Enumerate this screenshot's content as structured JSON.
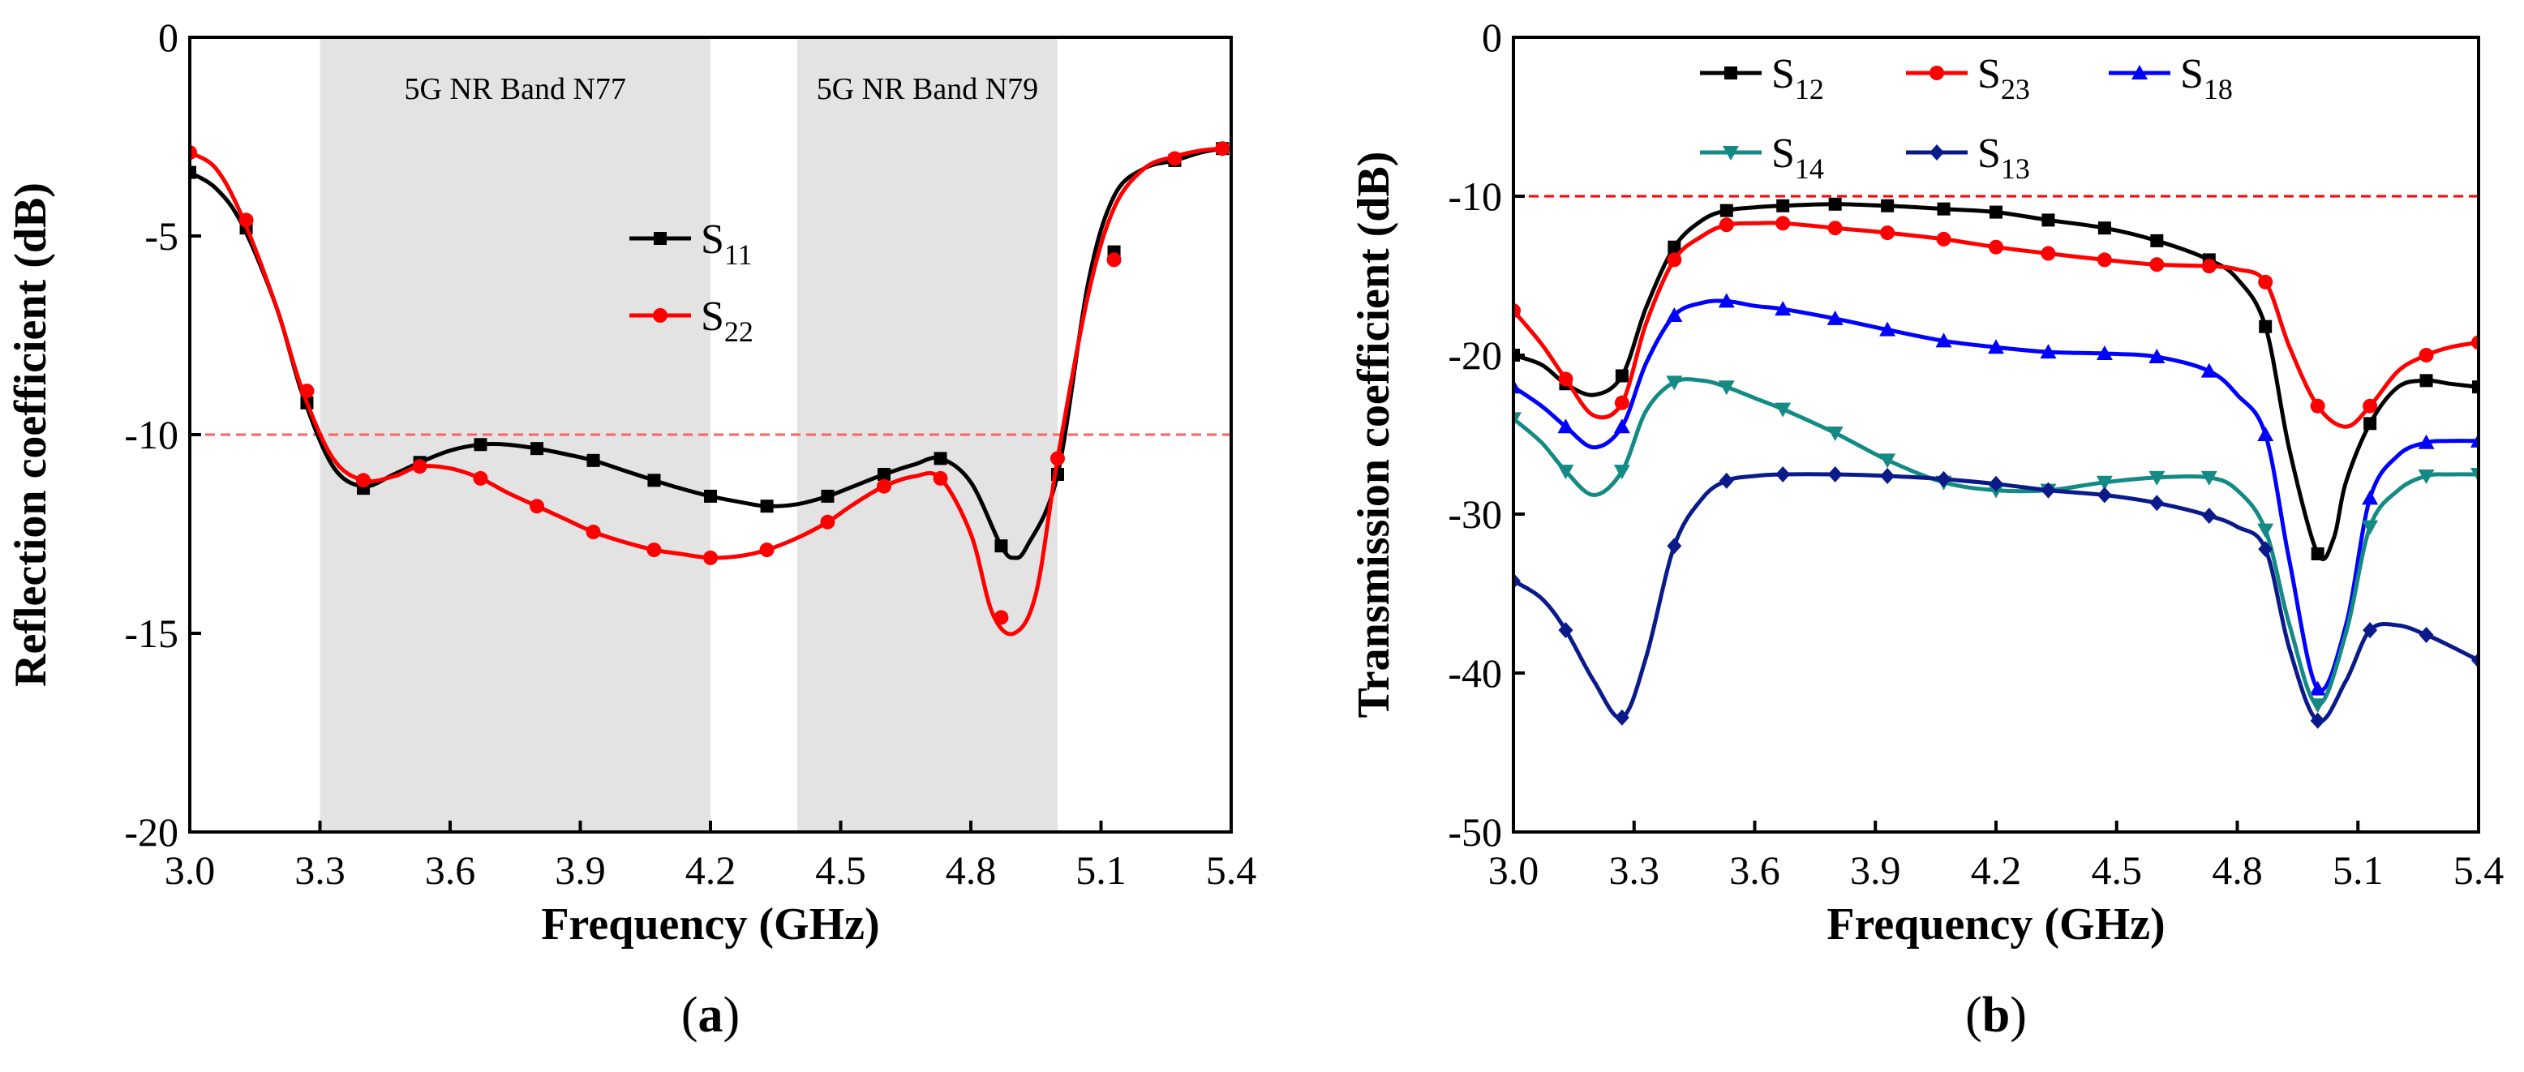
{
  "chart_data": [
    {
      "type": "line",
      "panel_label": "(a)",
      "panel_label_parts": [
        "(",
        "a",
        ")"
      ],
      "xlabel": "Frequency (GHz)",
      "ylabel": "Reflection coefficient (dB)",
      "xlim": [
        3.0,
        5.4
      ],
      "ylim": [
        -20,
        0
      ],
      "xticks": [
        3.0,
        3.3,
        3.6,
        3.9,
        4.2,
        4.5,
        4.8,
        5.1,
        5.4
      ],
      "xtick_labels": [
        "3.0",
        "3.3",
        "3.6",
        "3.9",
        "4.2",
        "4.5",
        "4.8",
        "5.1",
        "5.4"
      ],
      "yticks": [
        0,
        -5,
        -10,
        -15,
        -20
      ],
      "ytick_labels": [
        "0",
        "-5",
        "-10",
        "-15",
        "-20"
      ],
      "threshold": -10,
      "threshold_color": "#ff6060",
      "bands": [
        {
          "label": "5G NR Band N77",
          "x0": 3.3,
          "x1": 4.2,
          "color": "#e3e3e3"
        },
        {
          "label": "5G NR Band N79",
          "x0": 4.4,
          "x1": 5.0,
          "color": "#e3e3e3"
        }
      ],
      "legend_position": "center",
      "series": [
        {
          "name": "S11",
          "name_main": "S",
          "name_sub": "11",
          "color": "#000000",
          "marker": "square",
          "x": [
            3.0,
            3.06,
            3.12,
            3.2,
            3.26,
            3.33,
            3.4,
            3.47,
            3.53,
            3.6,
            3.67,
            3.73,
            3.8,
            3.87,
            3.93,
            4.0,
            4.07,
            4.13,
            4.2,
            4.27,
            4.33,
            4.4,
            4.47,
            4.53,
            4.6,
            4.67,
            4.73,
            4.8,
            4.87,
            4.9,
            4.93,
            5.0,
            5.07,
            5.13,
            5.2,
            5.27,
            5.33,
            5.38
          ],
          "y": [
            -3.4,
            -3.8,
            -4.7,
            -6.8,
            -9.0,
            -10.8,
            -11.3,
            -11.0,
            -10.7,
            -10.4,
            -10.25,
            -10.25,
            -10.35,
            -10.5,
            -10.65,
            -10.9,
            -11.15,
            -11.35,
            -11.55,
            -11.7,
            -11.8,
            -11.75,
            -11.55,
            -11.3,
            -11.0,
            -10.75,
            -10.6,
            -11.2,
            -12.8,
            -13.1,
            -12.8,
            -11.0,
            -6.2,
            -4.0,
            -3.3,
            -3.1,
            -2.9,
            -2.8
          ],
          "marker_x": [
            3.0,
            3.13,
            3.27,
            3.4,
            3.53,
            3.67,
            3.8,
            3.93,
            4.07,
            4.2,
            4.33,
            4.47,
            4.6,
            4.73,
            4.87,
            5.0,
            5.13,
            5.27,
            5.38
          ],
          "marker_y": [
            -3.4,
            -4.8,
            -9.2,
            -11.35,
            -10.7,
            -10.25,
            -10.35,
            -10.65,
            -11.15,
            -11.55,
            -11.8,
            -11.55,
            -11.0,
            -10.6,
            -12.8,
            -11.0,
            -5.4,
            -3.1,
            -2.8
          ]
        },
        {
          "name": "S22",
          "name_main": "S",
          "name_sub": "22",
          "color": "#ff0000",
          "marker": "circle",
          "x": [
            3.0,
            3.06,
            3.12,
            3.2,
            3.26,
            3.33,
            3.4,
            3.47,
            3.53,
            3.6,
            3.67,
            3.73,
            3.8,
            3.87,
            3.93,
            4.0,
            4.07,
            4.13,
            4.2,
            4.27,
            4.33,
            4.4,
            4.47,
            4.53,
            4.6,
            4.67,
            4.73,
            4.8,
            4.85,
            4.9,
            4.95,
            5.0,
            5.07,
            5.13,
            5.2,
            5.27,
            5.33,
            5.38
          ],
          "y": [
            -2.9,
            -3.3,
            -4.5,
            -6.8,
            -8.9,
            -10.6,
            -11.15,
            -11.05,
            -10.8,
            -10.85,
            -11.1,
            -11.45,
            -11.8,
            -12.15,
            -12.45,
            -12.7,
            -12.9,
            -13.0,
            -13.1,
            -13.05,
            -12.9,
            -12.6,
            -12.2,
            -11.75,
            -11.3,
            -11.05,
            -11.1,
            -12.5,
            -14.5,
            -15.0,
            -14.0,
            -10.6,
            -6.5,
            -4.3,
            -3.3,
            -3.0,
            -2.85,
            -2.8
          ],
          "marker_x": [
            3.0,
            3.13,
            3.27,
            3.4,
            3.53,
            3.67,
            3.8,
            3.93,
            4.07,
            4.2,
            4.33,
            4.47,
            4.6,
            4.73,
            4.87,
            5.0,
            5.13,
            5.27,
            5.38
          ],
          "marker_y": [
            -2.9,
            -4.6,
            -8.9,
            -11.15,
            -10.8,
            -11.1,
            -11.8,
            -12.45,
            -12.9,
            -13.1,
            -12.9,
            -12.2,
            -11.3,
            -11.1,
            -14.6,
            -10.6,
            -5.6,
            -3.05,
            -2.8
          ]
        }
      ]
    },
    {
      "type": "line",
      "panel_label": "(b)",
      "panel_label_parts": [
        "(",
        "b",
        ")"
      ],
      "xlabel": "Frequency (GHz)",
      "ylabel": "Transmission coefficient (dB)",
      "xlim": [
        3.0,
        5.4
      ],
      "ylim": [
        -50,
        0
      ],
      "xticks": [
        3.0,
        3.3,
        3.6,
        3.9,
        4.2,
        4.5,
        4.8,
        5.1,
        5.4
      ],
      "xtick_labels": [
        "3.0",
        "3.3",
        "3.6",
        "3.9",
        "4.2",
        "4.5",
        "4.8",
        "5.1",
        "5.4"
      ],
      "yticks": [
        0,
        -10,
        -20,
        -30,
        -40,
        -50
      ],
      "ytick_labels": [
        "0",
        "-10",
        "-20",
        "-30",
        "-40",
        "-50"
      ],
      "threshold": -10,
      "threshold_color": "#ff0000",
      "legend_position": "top",
      "series": [
        {
          "name": "S12",
          "name_main": "S",
          "name_sub": "12",
          "color": "#000000",
          "marker": "square",
          "x": [
            3.0,
            3.07,
            3.13,
            3.2,
            3.27,
            3.33,
            3.4,
            3.47,
            3.53,
            3.6,
            3.67,
            3.8,
            3.93,
            4.07,
            4.2,
            4.33,
            4.47,
            4.6,
            4.73,
            4.8,
            4.87,
            4.93,
            5.0,
            5.04,
            5.07,
            5.13,
            5.2,
            5.27,
            5.33,
            5.4
          ],
          "y": [
            -20.0,
            -20.6,
            -21.8,
            -22.5,
            -21.3,
            -17.0,
            -13.2,
            -11.5,
            -10.9,
            -10.7,
            -10.6,
            -10.5,
            -10.6,
            -10.8,
            -11.0,
            -11.5,
            -12.0,
            -12.8,
            -14.0,
            -15.2,
            -18.2,
            -26.0,
            -32.5,
            -31.5,
            -28.0,
            -24.3,
            -22.0,
            -21.6,
            -21.8,
            -22.0
          ],
          "marker_x": [
            3.0,
            3.13,
            3.27,
            3.4,
            3.53,
            3.67,
            3.8,
            3.93,
            4.07,
            4.2,
            4.33,
            4.47,
            4.6,
            4.73,
            4.87,
            5.0,
            5.13,
            5.27,
            5.4
          ],
          "marker_y": [
            -20.0,
            -21.8,
            -21.3,
            -13.2,
            -10.9,
            -10.6,
            -10.5,
            -10.6,
            -10.8,
            -11.0,
            -11.5,
            -12.0,
            -12.8,
            -14.0,
            -18.2,
            -32.5,
            -24.3,
            -21.6,
            -22.0
          ]
        },
        {
          "name": "S23",
          "name_main": "S",
          "name_sub": "23",
          "color": "#ff0000",
          "marker": "circle",
          "x": [
            3.0,
            3.07,
            3.13,
            3.2,
            3.27,
            3.33,
            3.4,
            3.47,
            3.53,
            3.6,
            3.67,
            3.8,
            3.93,
            4.07,
            4.2,
            4.33,
            4.47,
            4.6,
            4.73,
            4.8,
            4.87,
            4.93,
            5.0,
            5.07,
            5.13,
            5.2,
            5.27,
            5.33,
            5.4
          ],
          "y": [
            -17.2,
            -19.3,
            -21.5,
            -23.8,
            -23.0,
            -18.0,
            -14.0,
            -12.5,
            -11.8,
            -11.7,
            -11.7,
            -12.0,
            -12.3,
            -12.7,
            -13.2,
            -13.6,
            -14.0,
            -14.3,
            -14.4,
            -14.6,
            -15.4,
            -19.5,
            -23.2,
            -24.5,
            -23.2,
            -21.0,
            -20.0,
            -19.5,
            -19.2
          ],
          "marker_x": [
            3.0,
            3.13,
            3.27,
            3.4,
            3.53,
            3.67,
            3.8,
            3.93,
            4.07,
            4.2,
            4.33,
            4.47,
            4.6,
            4.73,
            4.87,
            5.0,
            5.13,
            5.27,
            5.4
          ],
          "marker_y": [
            -17.2,
            -21.5,
            -23.0,
            -14.0,
            -11.8,
            -11.7,
            -12.0,
            -12.3,
            -12.7,
            -13.2,
            -13.6,
            -14.0,
            -14.3,
            -14.4,
            -15.4,
            -23.2,
            -23.2,
            -20.0,
            -19.2
          ]
        },
        {
          "name": "S18",
          "name_main": "S",
          "name_sub": "18",
          "color": "#0000ff",
          "marker": "triangle-up",
          "x": [
            3.0,
            3.07,
            3.13,
            3.2,
            3.27,
            3.33,
            3.4,
            3.47,
            3.53,
            3.6,
            3.67,
            3.8,
            3.93,
            4.07,
            4.2,
            4.33,
            4.47,
            4.6,
            4.73,
            4.8,
            4.87,
            4.93,
            5.0,
            5.07,
            5.13,
            5.2,
            5.27,
            5.33,
            5.4
          ],
          "y": [
            -22.0,
            -23.2,
            -24.5,
            -25.8,
            -24.5,
            -20.5,
            -17.5,
            -16.7,
            -16.6,
            -16.9,
            -17.1,
            -17.7,
            -18.4,
            -19.1,
            -19.5,
            -19.8,
            -19.9,
            -20.1,
            -21.0,
            -22.5,
            -25.0,
            -33.0,
            -41.0,
            -37.0,
            -29.0,
            -26.3,
            -25.5,
            -25.4,
            -25.4
          ],
          "marker_x": [
            3.0,
            3.13,
            3.27,
            3.4,
            3.53,
            3.67,
            3.8,
            3.93,
            4.07,
            4.2,
            4.33,
            4.47,
            4.6,
            4.73,
            4.87,
            5.0,
            5.13,
            5.27,
            5.4
          ],
          "marker_y": [
            -22.0,
            -24.5,
            -24.5,
            -17.5,
            -16.6,
            -17.1,
            -17.7,
            -18.4,
            -19.1,
            -19.5,
            -19.8,
            -19.9,
            -20.1,
            -21.0,
            -25.0,
            -41.0,
            -29.0,
            -25.5,
            -25.4
          ]
        },
        {
          "name": "S14",
          "name_main": "S",
          "name_sub": "14",
          "color": "#138a84",
          "marker": "triangle-down",
          "x": [
            3.0,
            3.07,
            3.13,
            3.2,
            3.27,
            3.33,
            3.4,
            3.47,
            3.53,
            3.6,
            3.67,
            3.8,
            3.93,
            4.07,
            4.2,
            4.33,
            4.47,
            4.6,
            4.73,
            4.8,
            4.87,
            4.93,
            5.0,
            5.07,
            5.13,
            5.2,
            5.27,
            5.33,
            5.4
          ],
          "y": [
            -24.0,
            -25.5,
            -27.3,
            -28.8,
            -27.3,
            -23.5,
            -21.7,
            -21.6,
            -22.0,
            -22.7,
            -23.4,
            -24.9,
            -26.6,
            -28.0,
            -28.5,
            -28.5,
            -28.0,
            -27.7,
            -27.7,
            -28.5,
            -31.0,
            -37.0,
            -42.0,
            -37.5,
            -30.8,
            -28.5,
            -27.6,
            -27.5,
            -27.5
          ],
          "marker_x": [
            3.0,
            3.13,
            3.27,
            3.4,
            3.53,
            3.67,
            3.8,
            3.93,
            4.07,
            4.2,
            4.33,
            4.47,
            4.6,
            4.73,
            4.87,
            5.0,
            5.13,
            5.27,
            5.4
          ],
          "marker_y": [
            -24.0,
            -27.3,
            -27.3,
            -21.7,
            -22.0,
            -23.4,
            -24.9,
            -26.6,
            -28.0,
            -28.5,
            -28.5,
            -28.0,
            -27.7,
            -27.7,
            -31.0,
            -42.0,
            -30.8,
            -27.6,
            -27.5
          ]
        },
        {
          "name": "S13",
          "name_main": "S",
          "name_sub": "13",
          "color": "#0a1a8a",
          "marker": "diamond",
          "x": [
            3.0,
            3.07,
            3.13,
            3.2,
            3.27,
            3.33,
            3.4,
            3.47,
            3.53,
            3.6,
            3.67,
            3.8,
            3.93,
            4.07,
            4.2,
            4.33,
            4.47,
            4.6,
            4.73,
            4.8,
            4.87,
            4.93,
            5.0,
            5.07,
            5.13,
            5.2,
            5.27,
            5.33,
            5.4
          ],
          "y": [
            -34.2,
            -35.3,
            -37.3,
            -40.5,
            -42.8,
            -39.0,
            -32.0,
            -29.0,
            -27.9,
            -27.6,
            -27.5,
            -27.5,
            -27.6,
            -27.8,
            -28.1,
            -28.5,
            -28.8,
            -29.3,
            -30.1,
            -30.8,
            -32.2,
            -38.5,
            -43.0,
            -40.5,
            -37.3,
            -37.0,
            -37.6,
            -38.3,
            -39.2
          ],
          "marker_x": [
            3.0,
            3.13,
            3.27,
            3.4,
            3.53,
            3.67,
            3.8,
            3.93,
            4.07,
            4.2,
            4.33,
            4.47,
            4.6,
            4.73,
            4.87,
            5.0,
            5.13,
            5.27,
            5.4
          ],
          "marker_y": [
            -34.2,
            -37.3,
            -42.8,
            -32.0,
            -27.9,
            -27.5,
            -27.5,
            -27.6,
            -27.8,
            -28.1,
            -28.5,
            -28.8,
            -29.3,
            -30.1,
            -32.2,
            -43.0,
            -37.3,
            -37.6,
            -39.2
          ]
        }
      ]
    }
  ]
}
